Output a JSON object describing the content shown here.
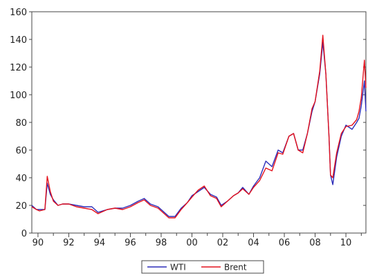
{
  "chart_data": {
    "type": "line",
    "title": "",
    "xlabel": "",
    "ylabel": "",
    "xlim": [
      1989.6,
      2011.3
    ],
    "ylim": [
      0,
      160
    ],
    "x_ticks": [
      1990,
      1992,
      1994,
      1996,
      1998,
      2000,
      2002,
      2004,
      2006,
      2008,
      2010
    ],
    "x_tick_labels": [
      "90",
      "92",
      "94",
      "96",
      "98",
      "00",
      "02",
      "04",
      "06",
      "08",
      "10"
    ],
    "y_ticks": [
      0,
      20,
      40,
      60,
      80,
      100,
      120,
      140,
      160
    ],
    "y_tick_labels": [
      "0",
      "20",
      "40",
      "60",
      "80",
      "100",
      "120",
      "140",
      "160"
    ],
    "grid": false,
    "legend_position": "bottom-center",
    "x": [
      1989.6,
      1989.9,
      1990.1,
      1990.45,
      1990.6,
      1990.8,
      1991.0,
      1991.3,
      1991.6,
      1992.0,
      1992.5,
      1993.0,
      1993.5,
      1993.9,
      1994.5,
      1995.0,
      1995.5,
      1996.0,
      1996.5,
      1996.9,
      1997.3,
      1997.8,
      1998.2,
      1998.5,
      1998.9,
      1999.3,
      1999.7,
      2000.0,
      2000.4,
      2000.8,
      2001.2,
      2001.6,
      2001.9,
      2002.3,
      2002.7,
      2003.0,
      2003.3,
      2003.7,
      2004.0,
      2004.4,
      2004.8,
      2005.2,
      2005.6,
      2005.9,
      2006.3,
      2006.6,
      2006.9,
      2007.2,
      2007.5,
      2007.8,
      2008.0,
      2008.3,
      2008.5,
      2008.7,
      2008.9,
      2009.0,
      2009.15,
      2009.4,
      2009.7,
      2010.0,
      2010.4,
      2010.7,
      2010.85,
      2011.0,
      2011.2,
      2011.3
    ],
    "series": [
      {
        "name": "WTI",
        "color": "#2b2bb8",
        "values": [
          20,
          17,
          17,
          17,
          36,
          28,
          24,
          20,
          21,
          21,
          20,
          19,
          19,
          15,
          17,
          18,
          18,
          20,
          23,
          25,
          21,
          19,
          15,
          12,
          12,
          18,
          22,
          27,
          30,
          33,
          28,
          26,
          20,
          23,
          27,
          29,
          33,
          28,
          34,
          40,
          52,
          48,
          60,
          58,
          70,
          72,
          60,
          60,
          72,
          88,
          95,
          115,
          138,
          115,
          70,
          42,
          35,
          55,
          70,
          78,
          75,
          80,
          83,
          92,
          110,
          88
        ]
      },
      {
        "name": "Brent",
        "color": "#e4111c",
        "values": [
          19,
          17,
          16,
          17,
          41,
          30,
          23,
          20,
          21,
          21,
          19,
          18,
          17,
          14,
          17,
          18,
          17,
          19,
          22,
          24,
          20,
          18,
          14,
          11,
          11,
          17,
          22,
          26,
          31,
          34,
          27,
          25,
          19,
          23,
          27,
          29,
          32,
          28,
          33,
          38,
          47,
          45,
          58,
          57,
          70,
          72,
          60,
          58,
          72,
          90,
          95,
          117,
          143,
          115,
          70,
          42,
          40,
          58,
          72,
          77,
          78,
          82,
          88,
          98,
          125,
          105
        ]
      }
    ]
  }
}
